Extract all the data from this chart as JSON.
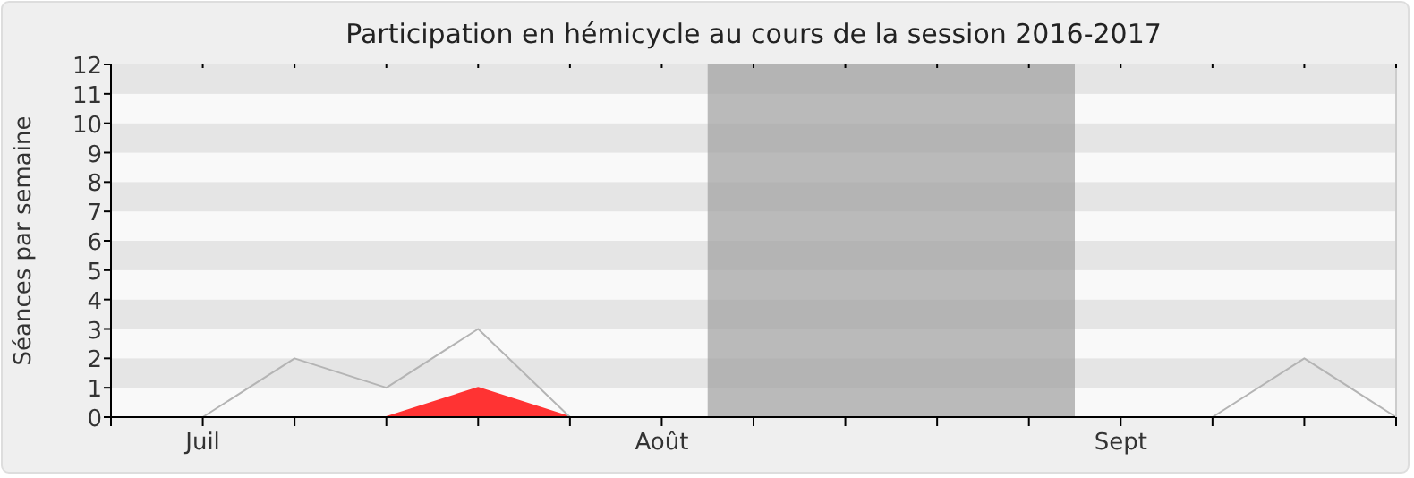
{
  "chart_data": {
    "type": "line",
    "title": "Participation en hémicycle au cours de la session 2016-2017",
    "ylabel": "Séances par semaine",
    "categories": [
      null,
      "Juil",
      null,
      null,
      null,
      null,
      "Août",
      null,
      null,
      null,
      null,
      "Sept",
      null,
      null,
      null
    ],
    "series": [
      {
        "type": "area",
        "color": "#ff3333",
        "values": [
          null,
          0,
          0,
          0,
          1,
          0,
          0,
          0,
          0,
          0,
          0,
          0,
          0,
          0,
          0
        ]
      },
      {
        "color": "#b4b4b4",
        "values": [
          null,
          0,
          2,
          1,
          3,
          0,
          0,
          0,
          0,
          0,
          0,
          0,
          0,
          2,
          0
        ]
      }
    ],
    "ylim": [
      0,
      12
    ],
    "yticks": [
      0,
      1,
      2,
      3,
      4,
      5,
      6,
      7,
      8,
      9,
      10,
      11,
      12
    ]
  }
}
